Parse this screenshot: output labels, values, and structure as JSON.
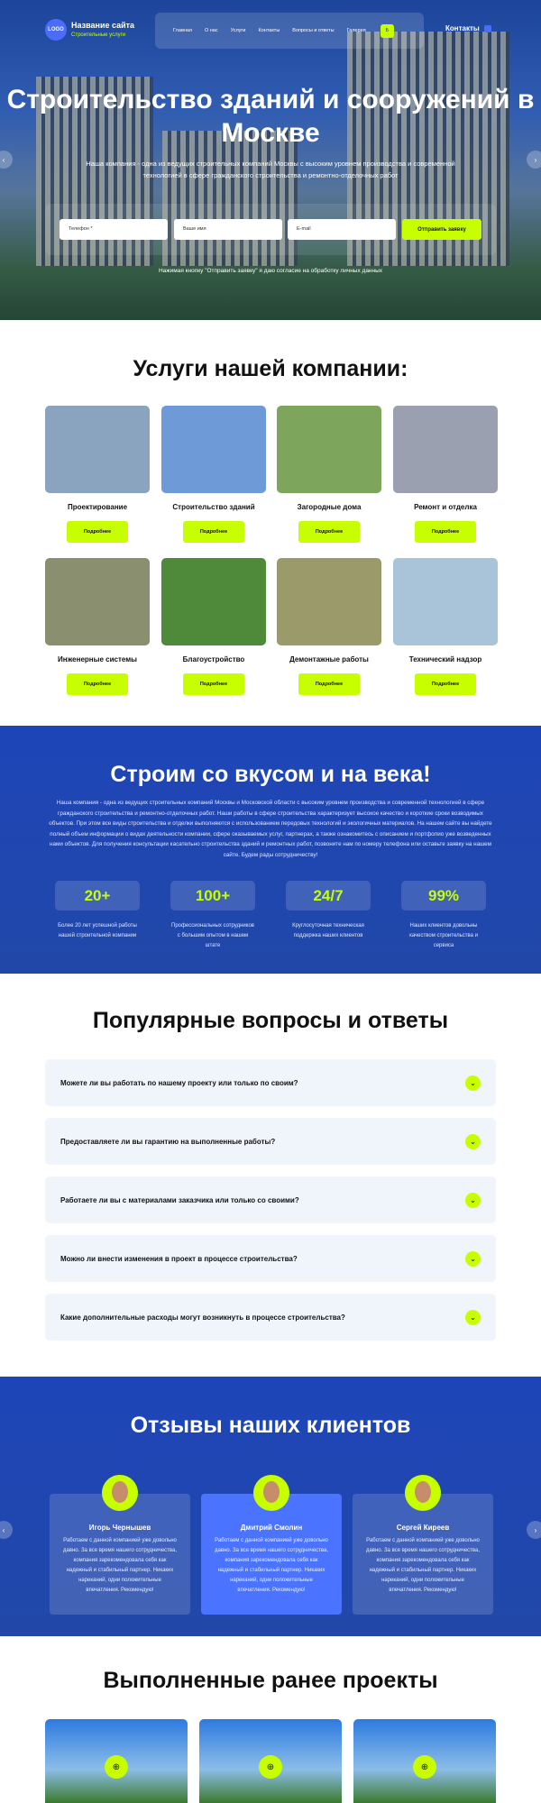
{
  "header": {
    "logo": "LOGO",
    "site_name": "Название сайта",
    "site_sub": "Строительные услуги",
    "nav": [
      "Главная",
      "О нас",
      "Услуги",
      "Контакты",
      "Вопросы и ответы",
      "Галерея"
    ],
    "nav_button": "Б",
    "contacts": "Контакты"
  },
  "hero": {
    "title": "Строительство зданий и сооружений в Москве",
    "lead": "Наша компания - одна из ведущих строительных компаний Москвы с высоким уровнем производства и современной технологией в сфере гражданского строительства и ремонтно-отделочных работ",
    "phone_placeholder": "Телефон *",
    "name_placeholder": "Ваше имя",
    "email_placeholder": "E-mail",
    "submit": "Отправить заявку",
    "agree": "Нажимая кнопку \"Отправить заявку\" я даю согласие на обработку личных данных",
    "prev": "‹",
    "next": "›"
  },
  "services": {
    "title": "Услуги нашей компании:",
    "more": "Подробнее",
    "items": [
      "Проектирование",
      "Строительство зданий",
      "Загородные дома",
      "Ремонт и отделка",
      "Инженерные системы",
      "Благоустройство",
      "Демонтажные работы",
      "Технический надзор"
    ]
  },
  "about": {
    "title": "Строим со вкусом и на века!",
    "text": "Наша компания - одна из ведущих строительных компаний Москвы и Московской области с высоким уровнем производства и современной технологией в сфере гражданского строительства и ремонтно-отделочных работ. Наши работы в сфере строительства характеризует высокое качество и короткие сроки возводимых объектов. При этом все виды строительства и отделки выполняются с использованием передовых технологий и экологичных материалов. На нашем сайте вы найдете полный объем информации о видах деятельности компании, сфере оказываемых услуг, партнерах, а также ознакомитесь с описанием и портфолио уже возведенных нами объектов. Для получения консультации касательно строительства зданий и ремонтных работ, позвоните нам по номеру телефона или оставьте заявку на нашем сайте. Будем рады сотрудничеству!",
    "stats": [
      {
        "value": "20+",
        "desc": "Более 20 лет успешной работы нашей строительной компании"
      },
      {
        "value": "100+",
        "desc": "Профессиональных сотрудников с большим опытом в нашем штате"
      },
      {
        "value": "24/7",
        "desc": "Круглосуточная техническая поддержка наших клиентов"
      },
      {
        "value": "99%",
        "desc": "Наших клиентов довольны качеством строительства и сервиса"
      }
    ]
  },
  "faq": {
    "title": "Популярные вопросы и ответы",
    "items": [
      "Можете ли вы работать по нашему проекту или только по своим?",
      "Предоставляете ли вы гарантию на выполненные работы?",
      "Работаете ли вы с материалами заказчика или только со своими?",
      "Можно ли внести изменения в проект в процессе строительства?",
      "Какие дополнительные расходы могут возникнуть в процессе строительства?"
    ]
  },
  "reviews": {
    "title": "Отзывы наших клиентов",
    "items": [
      {
        "name": "Игорь Чернышев",
        "text": "Работаем с данной компанией уже довольно давно. За все время нашего сотрудничества, компания зарекомендовала себя как надежный и стабильный партнер. Никаких нареканий, одни положительные впечатления. Рекомендую!"
      },
      {
        "name": "Дмитрий Смолин",
        "text": "Работаем с данной компанией уже довольно давно. За все время нашего сотрудничества, компания зарекомендовала себя как надежный и стабильный партнер. Никаких нареканий, одни положительные впечатления. Рекомендую!"
      },
      {
        "name": "Сергей Киреев",
        "text": "Работаем с данной компанией уже довольно давно. За все время нашего сотрудничества, компания зарекомендовала себя как надежный и стабильный партнер. Никаких нареканий, одни положительные впечатления. Рекомендую!"
      }
    ]
  },
  "projects": {
    "title": "Выполненные ранее проекты"
  },
  "colors": {
    "accent": "#c8ff00",
    "brand_blue": "#1e45b8",
    "active_card": "#4a74ff"
  }
}
